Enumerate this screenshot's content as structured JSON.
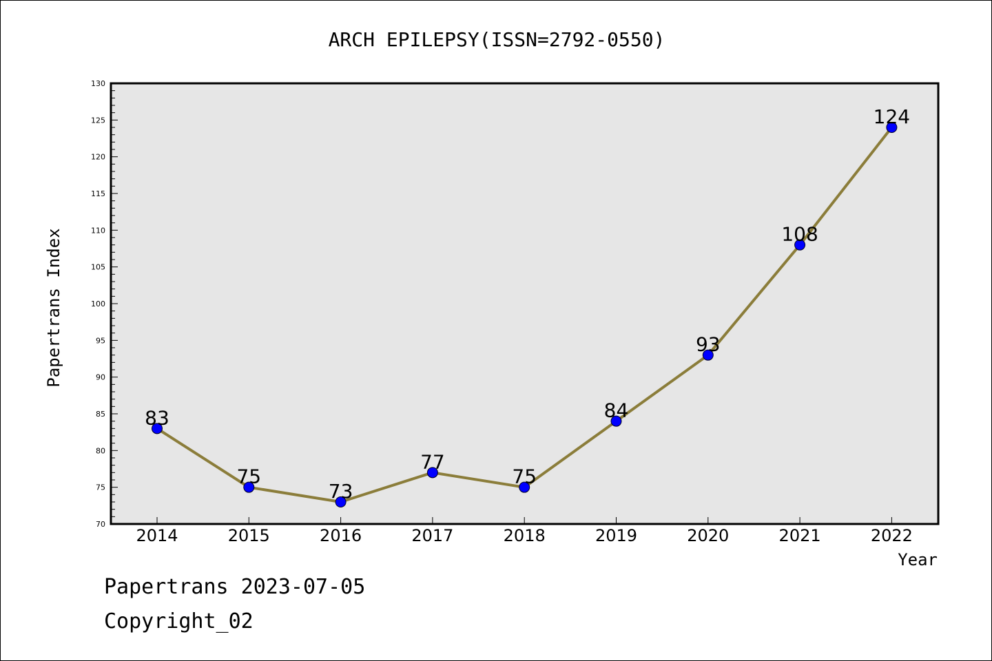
{
  "chart_data": {
    "type": "line",
    "title": "ARCH EPILEPSY(ISSN=2792-0550)",
    "xlabel": "Year",
    "ylabel": "Papertrans Index",
    "categories": [
      "2014",
      "2015",
      "2016",
      "2017",
      "2018",
      "2019",
      "2020",
      "2021",
      "2022"
    ],
    "series": [
      {
        "values": [
          83,
          75,
          73,
          77,
          75,
          84,
          93,
          108,
          124
        ]
      }
    ],
    "ylim": [
      70,
      130
    ],
    "yticks": [
      "70",
      "75",
      "80",
      "85",
      "90",
      "95",
      "100",
      "105",
      "110",
      "115",
      "120",
      "125",
      "130"
    ],
    "data_labels": [
      "83",
      "75",
      "73",
      "77",
      "75",
      "84",
      "93",
      "108",
      "124"
    ],
    "grid": false,
    "colors": {
      "line": "#8b7d3a",
      "marker": "#0000ff",
      "plot_background": "#e6e6e6"
    }
  },
  "footer": {
    "date_line": "Papertrans 2023-07-05",
    "copyright_line": "Copyright_02"
  }
}
